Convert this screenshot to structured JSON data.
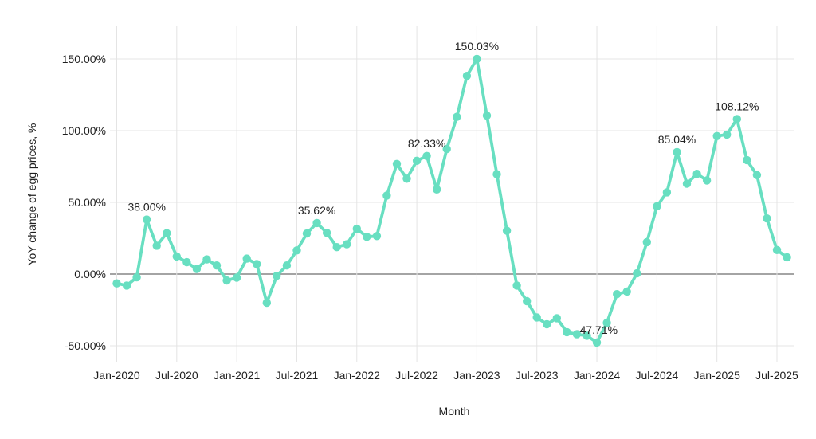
{
  "chart_data": {
    "type": "line",
    "title": "",
    "xlabel": "Month",
    "ylabel": "YoY change of egg prices, %",
    "series_name": "YoY change of egg prices",
    "legend_position": "none",
    "grid": true,
    "ylim": [
      -62,
      173
    ],
    "y_ticks": [
      {
        "label": "150.00%",
        "value": 150
      },
      {
        "label": "100.00%",
        "value": 100
      },
      {
        "label": "50.00%",
        "value": 50
      },
      {
        "label": "0.00%",
        "value": 0
      },
      {
        "label": "-50.00%",
        "value": -50
      }
    ],
    "x_tick_labels": [
      "Jan-2020",
      "Jul-2020",
      "Jan-2021",
      "Jul-2021",
      "Jan-2022",
      "Jul-2022",
      "Jan-2023",
      "Jul-2023",
      "Jan-2024",
      "Jul-2024",
      "Jan-2025",
      "Jul-2025"
    ],
    "points": [
      {
        "month": "Jan-2020",
        "value": -6.5
      },
      {
        "month": "Feb-2020",
        "value": -8.0
      },
      {
        "month": "Mar-2020",
        "value": -2.3
      },
      {
        "month": "Apr-2020",
        "value": 38.0
      },
      {
        "month": "May-2020",
        "value": 19.8
      },
      {
        "month": "Jun-2020",
        "value": 28.5
      },
      {
        "month": "Jul-2020",
        "value": 12.3
      },
      {
        "month": "Aug-2020",
        "value": 8.3
      },
      {
        "month": "Sep-2020",
        "value": 3.5
      },
      {
        "month": "Oct-2020",
        "value": 10.2
      },
      {
        "month": "Nov-2020",
        "value": 6.0
      },
      {
        "month": "Dec-2020",
        "value": -4.5
      },
      {
        "month": "Jan-2021",
        "value": -2.5
      },
      {
        "month": "Feb-2021",
        "value": 10.8
      },
      {
        "month": "Mar-2021",
        "value": 7.0
      },
      {
        "month": "Apr-2021",
        "value": -20.0
      },
      {
        "month": "May-2021",
        "value": -1.2
      },
      {
        "month": "Jun-2021",
        "value": 6.0
      },
      {
        "month": "Jul-2021",
        "value": 16.5
      },
      {
        "month": "Aug-2021",
        "value": 28.3
      },
      {
        "month": "Sep-2021",
        "value": 35.62
      },
      {
        "month": "Oct-2021",
        "value": 28.8
      },
      {
        "month": "Nov-2021",
        "value": 18.8
      },
      {
        "month": "Dec-2021",
        "value": 20.8
      },
      {
        "month": "Jan-2022",
        "value": 31.6
      },
      {
        "month": "Feb-2022",
        "value": 26.0
      },
      {
        "month": "Mar-2022",
        "value": 26.5
      },
      {
        "month": "Apr-2022",
        "value": 54.8
      },
      {
        "month": "May-2022",
        "value": 76.8
      },
      {
        "month": "Jun-2022",
        "value": 66.5
      },
      {
        "month": "Jul-2022",
        "value": 79.0
      },
      {
        "month": "Aug-2022",
        "value": 82.33
      },
      {
        "month": "Sep-2022",
        "value": 59.0
      },
      {
        "month": "Oct-2022",
        "value": 87.2
      },
      {
        "month": "Nov-2022",
        "value": 109.6
      },
      {
        "month": "Dec-2022",
        "value": 138.2
      },
      {
        "month": "Jan-2023",
        "value": 150.03
      },
      {
        "month": "Feb-2023",
        "value": 110.5
      },
      {
        "month": "Mar-2023",
        "value": 69.6
      },
      {
        "month": "Apr-2023",
        "value": 30.2
      },
      {
        "month": "May-2023",
        "value": -8.0
      },
      {
        "month": "Jun-2023",
        "value": -18.9
      },
      {
        "month": "Jul-2023",
        "value": -30.2
      },
      {
        "month": "Aug-2023",
        "value": -35.0
      },
      {
        "month": "Sep-2023",
        "value": -30.8
      },
      {
        "month": "Oct-2023",
        "value": -40.5
      },
      {
        "month": "Nov-2023",
        "value": -42.0
      },
      {
        "month": "Dec-2023",
        "value": -43.0
      },
      {
        "month": "Jan-2024",
        "value": -47.71
      },
      {
        "month": "Feb-2024",
        "value": -34.0
      },
      {
        "month": "Mar-2024",
        "value": -14.0
      },
      {
        "month": "Apr-2024",
        "value": -12.2
      },
      {
        "month": "May-2024",
        "value": 0.5
      },
      {
        "month": "Jun-2024",
        "value": 22.3
      },
      {
        "month": "Jul-2024",
        "value": 47.3
      },
      {
        "month": "Aug-2024",
        "value": 57.0
      },
      {
        "month": "Sep-2024",
        "value": 85.04
      },
      {
        "month": "Oct-2024",
        "value": 63.0
      },
      {
        "month": "Nov-2024",
        "value": 69.9
      },
      {
        "month": "Dec-2024",
        "value": 65.3
      },
      {
        "month": "Jan-2025",
        "value": 96.2
      },
      {
        "month": "Feb-2025",
        "value": 97.3
      },
      {
        "month": "Mar-2025",
        "value": 108.12
      },
      {
        "month": "Apr-2025",
        "value": 79.5
      },
      {
        "month": "May-2025",
        "value": 69.0
      },
      {
        "month": "Jun-2025",
        "value": 38.8
      },
      {
        "month": "Jul-2025",
        "value": 16.8
      },
      {
        "month": "Aug-2025",
        "value": 11.7
      }
    ],
    "annotations": [
      {
        "month": "Apr-2020",
        "label": "38.00%"
      },
      {
        "month": "Sep-2021",
        "label": "35.62%"
      },
      {
        "month": "Aug-2022",
        "label": "82.33%"
      },
      {
        "month": "Jan-2023",
        "label": "150.03%"
      },
      {
        "month": "Jan-2024",
        "label": "-47.71%"
      },
      {
        "month": "Sep-2024",
        "label": "85.04%"
      },
      {
        "month": "Mar-2025",
        "label": "108.12%"
      }
    ],
    "colors": {
      "line": "#68dfc1",
      "marker": "#68dfc1",
      "grid": "#e4e4e4",
      "zero_line": "#858585",
      "text": "#212121"
    }
  }
}
